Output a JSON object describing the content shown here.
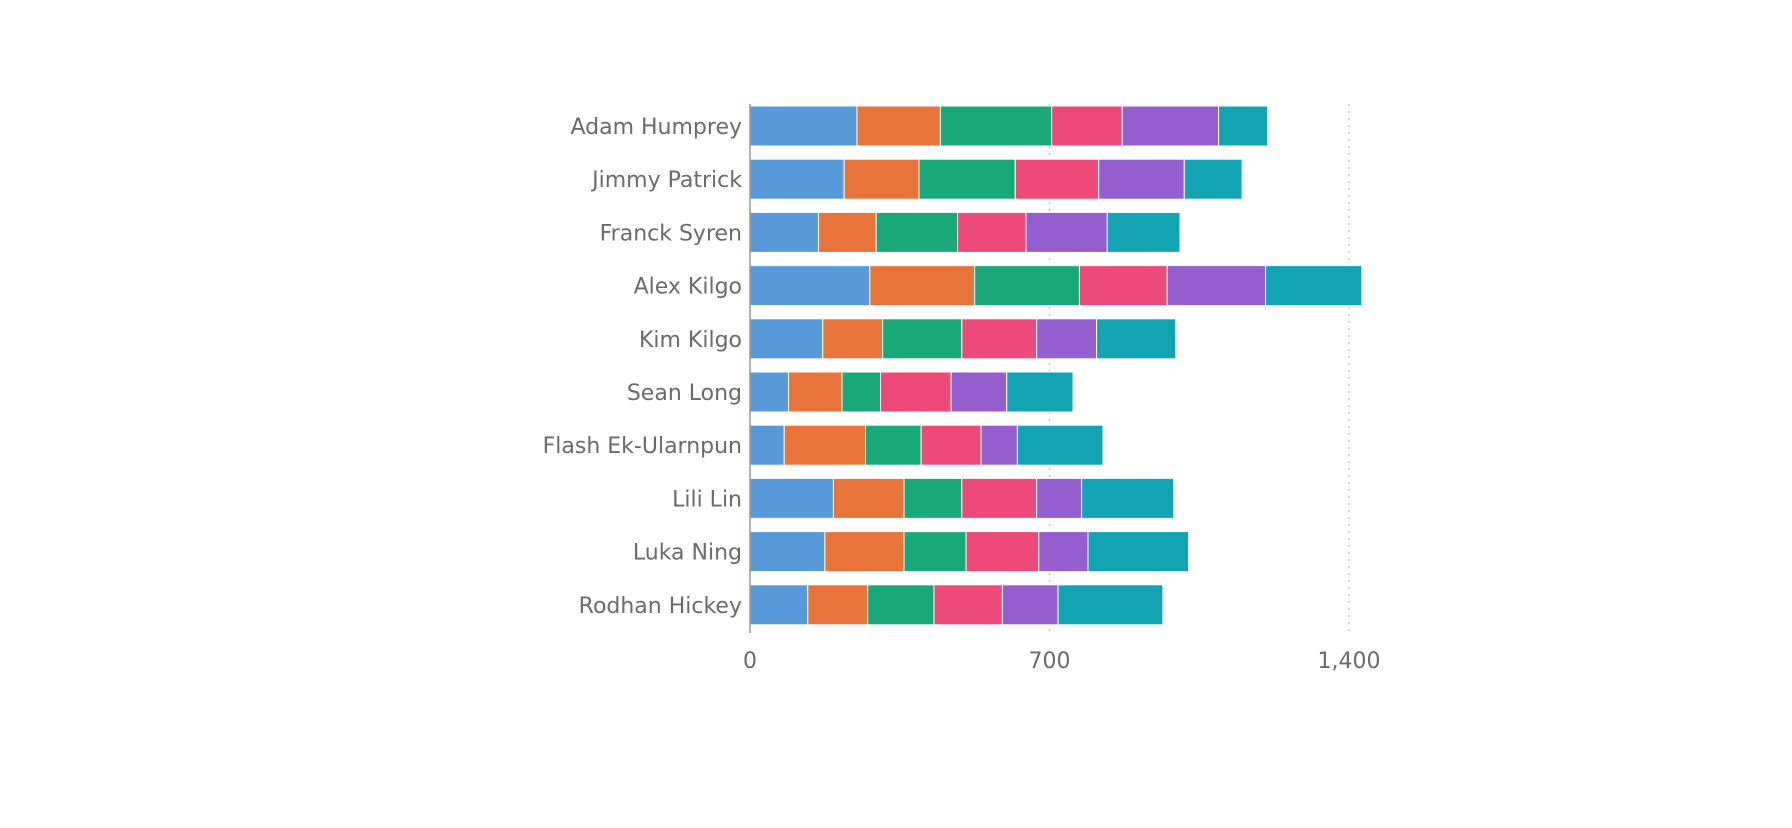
{
  "chart_data": {
    "type": "bar",
    "orientation": "horizontal",
    "stacked": true,
    "categories": [
      "Adam Humprey",
      "Jimmy Patrick",
      "Franck Syren",
      "Alex Kilgo",
      "Kim Kilgo",
      "Sean Long",
      "Flash Ek-Ularnpun",
      "Lili Lin",
      "Luka Ning",
      "Rodhan Hickey"
    ],
    "series": [
      {
        "color": "#5899da",
        "values": [
          250,
          220,
          160,
          280,
          170,
          90,
          80,
          195,
          175,
          135
        ]
      },
      {
        "color": "#e8743b",
        "values": [
          195,
          175,
          135,
          245,
          140,
          125,
          190,
          165,
          185,
          140
        ]
      },
      {
        "color": "#19a979",
        "values": [
          260,
          225,
          190,
          245,
          185,
          90,
          130,
          135,
          145,
          155
        ]
      },
      {
        "color": "#ed4a7b",
        "values": [
          165,
          195,
          160,
          205,
          175,
          165,
          140,
          175,
          170,
          160
        ]
      },
      {
        "color": "#945ecf",
        "values": [
          225,
          200,
          190,
          230,
          140,
          130,
          85,
          105,
          115,
          130
        ]
      },
      {
        "color": "#13a4b4",
        "values": [
          115,
          135,
          170,
          225,
          185,
          155,
          200,
          215,
          235,
          245
        ]
      }
    ],
    "xlim": [
      0,
      1400
    ],
    "x_ticks": [
      0,
      700,
      1400
    ],
    "x_tick_labels": [
      "0",
      "700",
      "1,400"
    ],
    "title": "",
    "xlabel": "",
    "ylabel": "",
    "grid": true,
    "legend": "none"
  }
}
